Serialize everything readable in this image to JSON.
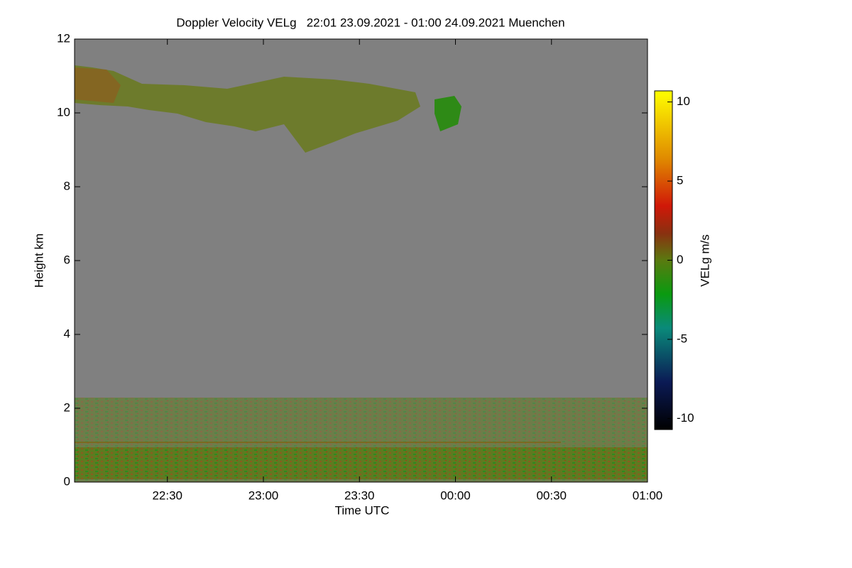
{
  "chart_data": {
    "type": "heatmap",
    "title": "Doppler Velocity VELg   22:01 23.09.2021 - 01:00 24.09.2021 Muenchen",
    "x_label": "Time UTC",
    "y_label": "Height km",
    "colorbar_label": "VELg m/s",
    "xlim": [
      1321,
      1500
    ],
    "xticks": [
      {
        "value": 1350,
        "label": "22:30"
      },
      {
        "value": 1380,
        "label": "23:00"
      },
      {
        "value": 1410,
        "label": "23:30"
      },
      {
        "value": 1440,
        "label": "00:00"
      },
      {
        "value": 1470,
        "label": "00:30"
      },
      {
        "value": 1500,
        "label": "01:00"
      }
    ],
    "ylim": [
      0,
      12
    ],
    "yticks": [
      0,
      2,
      4,
      6,
      8,
      10,
      12
    ],
    "clim": [
      -10.7,
      10.7
    ],
    "cticks": [
      -10,
      -5,
      0,
      5,
      10
    ],
    "background": "#808080"
  }
}
